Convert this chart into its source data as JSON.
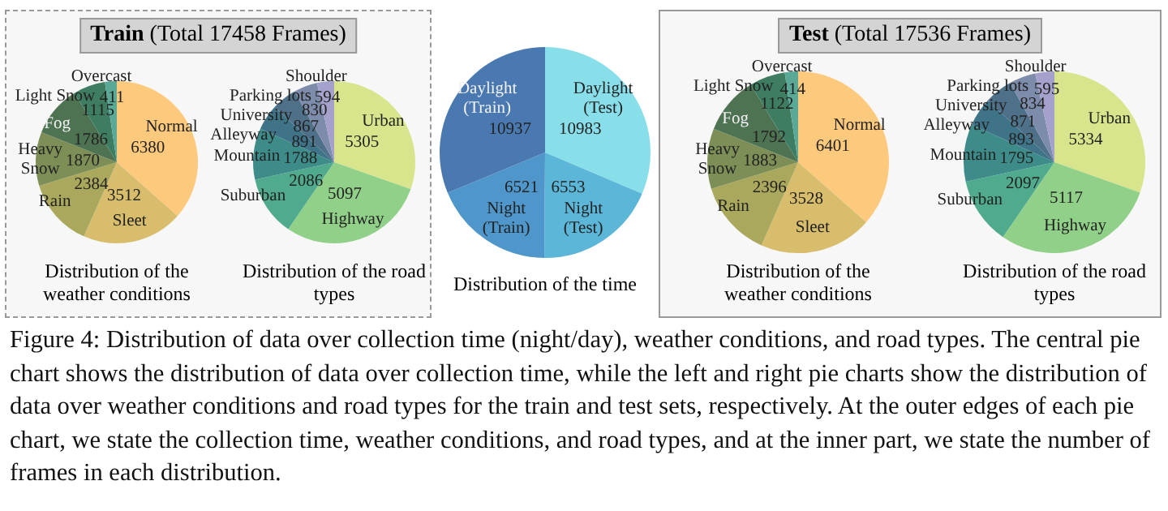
{
  "chart_data": [
    {
      "type": "pie",
      "title": "Distribution of the weather conditions",
      "annotations": [
        "Train (Total 17458 Frames)"
      ],
      "data_labels": true,
      "legend": false,
      "categories": [
        "Normal",
        "Sleet",
        "Rain",
        "Heavy Snow",
        "Fog",
        "Light Snow",
        "Overcast"
      ],
      "values": [
        6380,
        3512,
        2384,
        1870,
        1786,
        1115,
        411
      ],
      "colors": [
        "#fdc97c",
        "#d8bd6c",
        "#aaa85c",
        "#7d8e57",
        "#4e7352",
        "#3e7d62",
        "#5aa996"
      ]
    },
    {
      "type": "pie",
      "title": "Distribution of the road types",
      "data_labels": true,
      "legend": false,
      "categories": [
        "Urban",
        "Highway",
        "Suburban",
        "Mountain",
        "Alleyway",
        "University",
        "Parking lots",
        "Shoulder"
      ],
      "values": [
        5305,
        5097,
        2086,
        1788,
        891,
        867,
        830,
        594
      ],
      "colors": [
        "#d8e58c",
        "#91d088",
        "#50aa8d",
        "#3e8c8a",
        "#3f7387",
        "#4f7089",
        "#7d8cab",
        "#a4a2cc"
      ]
    },
    {
      "type": "pie",
      "title": "Distribution of the time",
      "data_labels": true,
      "legend": false,
      "annotations": [
        "Figure 4: Distribution of data over collection time (night/day), weather conditions, and road types. The central pie chart shows the distribution of data over collection time, while the left and right pie charts show the distribution of data over weather conditions and road types for the train and test sets, respectively. At the outer edges of each pie chart, we state the collection time, weather conditions, and road types, and at the inner part, we state the number of frames in each distribution."
      ],
      "categories": [
        "Daylight (Test)",
        "Night (Test)",
        "Night (Train)",
        "Daylight (Train)"
      ],
      "values": [
        10983,
        6553,
        6521,
        10937
      ],
      "colors": [
        "#88dee9",
        "#5cb6d8",
        "#4f97ca",
        "#4a79b1"
      ]
    },
    {
      "type": "pie",
      "title": "Distribution of the weather conditions",
      "annotations": [
        "Test (Total 17536 Frames)"
      ],
      "data_labels": true,
      "legend": false,
      "categories": [
        "Normal",
        "Sleet",
        "Rain",
        "Heavy Snow",
        "Fog",
        "Light Snow",
        "Overcast"
      ],
      "values": [
        6401,
        3528,
        2396,
        1883,
        1792,
        1122,
        414
      ],
      "colors": [
        "#fdc97c",
        "#d8bd6c",
        "#aaa85c",
        "#7d8e57",
        "#4e7352",
        "#3e7d62",
        "#5aa996"
      ]
    },
    {
      "type": "pie",
      "title": "Distribution of the road types",
      "data_labels": true,
      "legend": false,
      "categories": [
        "Urban",
        "Highway",
        "Suburban",
        "Mountain",
        "Alleyway",
        "University",
        "Parking lots",
        "Shoulder"
      ],
      "values": [
        5334,
        5117,
        2097,
        1795,
        893,
        871,
        834,
        595
      ],
      "colors": [
        "#d8e58c",
        "#91d088",
        "#50aa8d",
        "#3e8c8a",
        "#3f7387",
        "#4f7089",
        "#7d8cab",
        "#a4a2cc"
      ]
    }
  ]
}
